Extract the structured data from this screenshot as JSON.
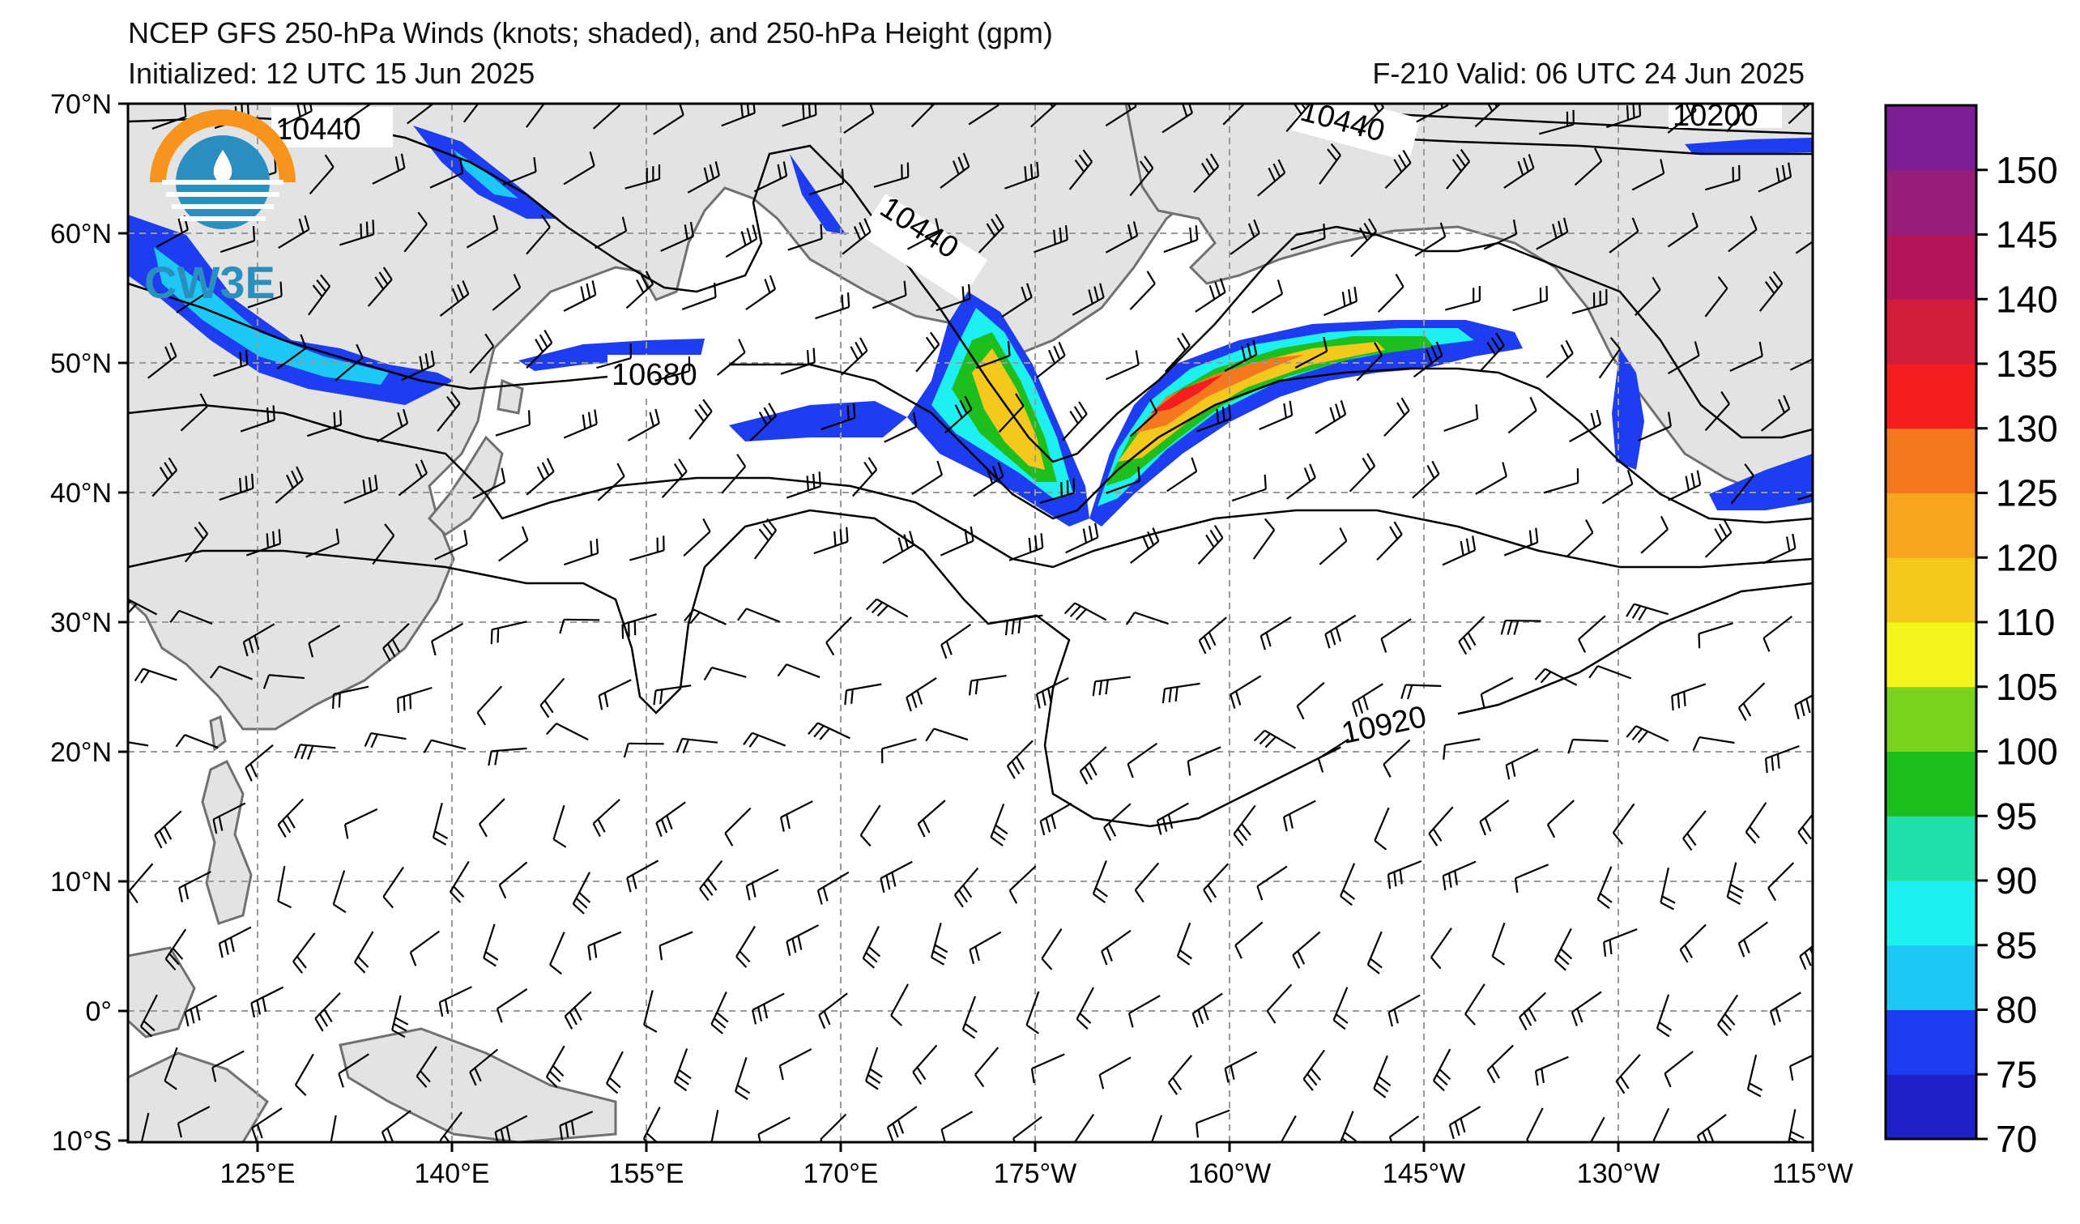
{
  "title": {
    "line1": "NCEP GFS 250-hPa Winds (knots; shaded), and 250-hPa Height (gpm)",
    "line2": "Initialized: 12 UTC 15 Jun 2025",
    "valid": "F-210  Valid: 06 UTC 24 Jun 2025"
  },
  "logo": {
    "text": "CW3E",
    "colors": {
      "orange": "#f7941d",
      "blue": "#2a8fbf",
      "dark_blue": "#1f6f96"
    }
  },
  "map": {
    "lat_labels": [
      "70°N",
      "60°N",
      "50°N",
      "40°N",
      "30°N",
      "20°N",
      "10°N",
      "0°",
      "10°S"
    ],
    "lon_labels": [
      "125°E",
      "140°E",
      "155°E",
      "170°E",
      "175°W",
      "160°W",
      "145°W",
      "130°W",
      "115°W"
    ],
    "contour_labels": [
      "10440",
      "10440",
      "10440",
      "10200",
      "10680",
      "10920"
    ],
    "colors": {
      "land": "#e3e3e3",
      "coast": "#707070",
      "grid": "#9a9a9a",
      "contour": "#000000"
    }
  },
  "colorbar": {
    "unit": "knots",
    "ticks": [
      "150",
      "145",
      "140",
      "135",
      "130",
      "125",
      "120",
      "110",
      "105",
      "100",
      "95",
      "90",
      "85",
      "80",
      "75",
      "70"
    ],
    "bins": [
      {
        "from": 70,
        "to": 75,
        "color": "#2020c8"
      },
      {
        "from": 75,
        "to": 80,
        "color": "#1e3cf0"
      },
      {
        "from": 80,
        "to": 85,
        "color": "#1ec8f5"
      },
      {
        "from": 85,
        "to": 90,
        "color": "#1ef0f0"
      },
      {
        "from": 90,
        "to": 95,
        "color": "#1ee0a8"
      },
      {
        "from": 95,
        "to": 100,
        "color": "#1ebe1e"
      },
      {
        "from": 100,
        "to": 105,
        "color": "#78d21e"
      },
      {
        "from": 105,
        "to": 110,
        "color": "#f5f51e"
      },
      {
        "from": 110,
        "to": 120,
        "color": "#f5c81e"
      },
      {
        "from": 120,
        "to": 125,
        "color": "#f5a51e"
      },
      {
        "from": 125,
        "to": 130,
        "color": "#f5781e"
      },
      {
        "from": 130,
        "to": 135,
        "color": "#f51e1e"
      },
      {
        "from": 135,
        "to": 140,
        "color": "#d21e3c"
      },
      {
        "from": 140,
        "to": 145,
        "color": "#b4145a"
      },
      {
        "from": 145,
        "to": 150,
        "color": "#961e78"
      },
      {
        "from": 150,
        "to": 155,
        "color": "#7d1e96"
      }
    ]
  }
}
